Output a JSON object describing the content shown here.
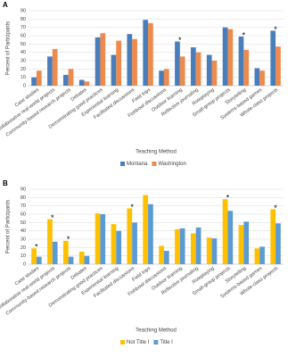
{
  "chart_data": [
    {
      "type": "bar",
      "panel_label": "A",
      "y_label": "Percent of Participants",
      "x_label": "Teaching Method",
      "categories": [
        "Case studies",
        "Collaborative real-world projects",
        "Community-based research projects",
        "Debates",
        "Demonstrating good practices",
        "Experiential learning",
        "Facilitated discussions",
        "Field trips",
        "Fishbowl discussions",
        "Outdoor learning",
        "Reflective journaling",
        "Roleplaying",
        "Small-group projects",
        "Storytelling",
        "Systems-based games",
        "Whole-class projects"
      ],
      "series": [
        {
          "name": "Montana",
          "color": "#4a7ebb",
          "values": [
            10,
            35,
            13,
            7,
            58,
            37,
            62,
            79,
            18,
            53,
            46,
            37,
            70,
            59,
            21,
            66
          ]
        },
        {
          "name": "Washington",
          "color": "#ed8a4c",
          "values": [
            18,
            44,
            20,
            5,
            63,
            54,
            56,
            75,
            20,
            35,
            40,
            30,
            68,
            43,
            18,
            47
          ]
        }
      ],
      "annotations": [
        {
          "text": "*",
          "x": "Outdoor learning"
        },
        {
          "text": "*",
          "x": "Storytelling"
        },
        {
          "text": "*",
          "x": "Whole-class projects"
        }
      ],
      "ylim": [
        0,
        90
      ],
      "yticks": [
        0,
        10,
        20,
        30,
        40,
        50,
        60,
        70,
        80,
        90
      ],
      "grid": true
    },
    {
      "type": "bar",
      "panel_label": "B",
      "y_label": "Percent of Participants",
      "x_label": "Teaching Method",
      "categories": [
        "Case studies",
        "Collaborative real-world projects",
        "Community-based research projects",
        "Debates",
        "Demonstrating good practices",
        "Experiential learning",
        "Facilitated discussions",
        "Field trips",
        "Fishbowl discussions",
        "Outdoor learning",
        "Reflective journaling",
        "Roleplaying",
        "Small-group projects",
        "Storytelling",
        "Systems-based games",
        "Whole-class projects"
      ],
      "series": [
        {
          "name": "Not Title I",
          "color": "#ffc000",
          "values": [
            19,
            54,
            28,
            15,
            61,
            48,
            67,
            83,
            22,
            42,
            37,
            32,
            78,
            47,
            19,
            66
          ]
        },
        {
          "name": "Title I",
          "color": "#5b9bd5",
          "values": [
            9,
            27,
            9,
            10,
            60,
            40,
            50,
            72,
            16,
            43,
            44,
            31,
            64,
            51,
            21,
            49
          ]
        }
      ],
      "annotations": [
        {
          "text": "*",
          "x": "Case studies"
        },
        {
          "text": "*",
          "x": "Collaborative real-world projects"
        },
        {
          "text": "*",
          "x": "Community-based research projects"
        },
        {
          "text": "*",
          "x": "Facilitated discussions"
        },
        {
          "text": "*",
          "x": "Small-group projects"
        },
        {
          "text": "*",
          "x": "Whole-class projects"
        }
      ],
      "ylim": [
        0,
        90
      ],
      "yticks": [
        0,
        10,
        20,
        30,
        40,
        50,
        60,
        70,
        80,
        90
      ],
      "grid": true
    }
  ]
}
